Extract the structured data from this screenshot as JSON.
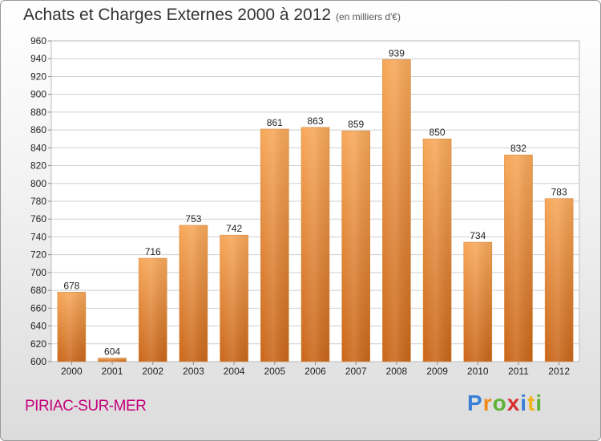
{
  "chart_data": {
    "type": "bar",
    "title": "Achats et Charges Externes 2000 à 2012",
    "subtitle": "(en milliers d'€)",
    "categories": [
      "2000",
      "2001",
      "2002",
      "2003",
      "2004",
      "2005",
      "2006",
      "2007",
      "2008",
      "2009",
      "2010",
      "2011",
      "2012"
    ],
    "values": [
      678,
      604,
      716,
      753,
      742,
      861,
      863,
      859,
      939,
      850,
      734,
      832,
      783
    ],
    "ylim": [
      600,
      960
    ],
    "yticks": [
      600,
      620,
      640,
      660,
      680,
      700,
      720,
      740,
      760,
      780,
      800,
      820,
      840,
      860,
      880,
      900,
      920,
      940,
      960
    ],
    "grid": true,
    "bar_color": "#f0923a",
    "xlabel": "",
    "ylabel": ""
  },
  "footer": {
    "city": "PIRIAC-SUR-MER",
    "logo_letters": [
      "P",
      "r",
      "o",
      "x",
      "i",
      "t",
      "i"
    ],
    "logo_colors": [
      "#3a7fd5",
      "#f08a1c",
      "#5fb336",
      "#d62f2f",
      "#3a7fd5",
      "#f0b51c",
      "#5fb336"
    ]
  }
}
